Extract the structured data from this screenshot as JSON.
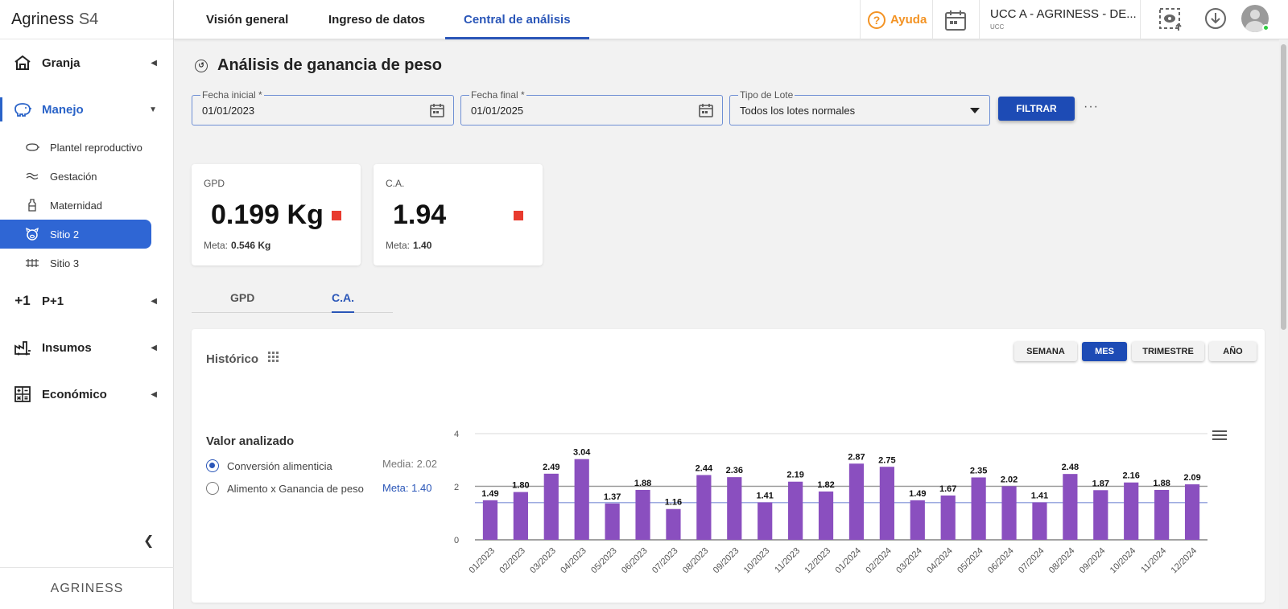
{
  "brand": {
    "name": "Agriness",
    "product": "S4"
  },
  "sidebar": {
    "groups": [
      {
        "label": "Granja",
        "icon": "barn-icon"
      },
      {
        "label": "Manejo",
        "icon": "pig-icon"
      },
      {
        "label": "P+1",
        "icon": "plus-one-icon"
      },
      {
        "label": "Insumos",
        "icon": "factory-icon"
      },
      {
        "label": "Económico",
        "icon": "calculator-icon"
      }
    ],
    "subitems": [
      {
        "label": "Plantel reproductivo",
        "icon": "pig-outline-icon"
      },
      {
        "label": "Gestación",
        "icon": "gestation-icon"
      },
      {
        "label": "Maternidad",
        "icon": "bottle-icon"
      },
      {
        "label": "Sitio 2",
        "icon": "piglet-icon"
      },
      {
        "label": "Sitio 3",
        "icon": "pen-icon"
      }
    ],
    "footer": "AGRINESS"
  },
  "topbar": {
    "tabs": [
      "Visión general",
      "Ingreso de datos",
      "Central de análisis"
    ],
    "help": "Ayuda",
    "farm_name": "UCC A - AGRINESS - DE...",
    "farm_sub": "UCC"
  },
  "page": {
    "title": "Análisis de ganancia de peso"
  },
  "filters": {
    "start_label": "Fecha inicial *",
    "start_value": "01/01/2023",
    "end_label": "Fecha final *",
    "end_value": "01/01/2025",
    "lot_label": "Tipo de Lote",
    "lot_value": "Todos los lotes normales",
    "filter_button": "FILTRAR",
    "more": "···"
  },
  "kpis": {
    "gpd": {
      "label": "GPD",
      "value": "0.199 Kg",
      "meta_label": "Meta:",
      "meta_value": "0.546 Kg",
      "status_color": "#e83a2e"
    },
    "ca": {
      "label": "C.A.",
      "value": "1.94",
      "meta_label": "Meta:",
      "meta_value": "1.40",
      "status_color": "#e83a2e"
    }
  },
  "kpi_tabs": [
    "GPD",
    "C.A."
  ],
  "history": {
    "title": "Histórico",
    "periods": [
      "SEMANA",
      "MES",
      "TRIMESTRE",
      "AÑO"
    ],
    "selected_period": "MES",
    "analyzed_title": "Valor analizado",
    "options": [
      "Conversión alimenticia",
      "Alimento x Ganancia de peso"
    ],
    "media": "Media: 2.02",
    "meta": "Meta: 1.40"
  },
  "chart_data": {
    "type": "bar",
    "categories": [
      "01/2023",
      "02/2023",
      "03/2023",
      "04/2023",
      "05/2023",
      "06/2023",
      "07/2023",
      "08/2023",
      "09/2023",
      "10/2023",
      "11/2023",
      "12/2023",
      "01/2024",
      "02/2024",
      "03/2024",
      "04/2024",
      "05/2024",
      "06/2024",
      "07/2024",
      "08/2024",
      "09/2024",
      "10/2024",
      "11/2024",
      "12/2024"
    ],
    "values": [
      1.49,
      1.8,
      2.49,
      3.04,
      1.37,
      1.88,
      1.16,
      2.44,
      2.36,
      1.41,
      2.19,
      1.82,
      2.87,
      2.75,
      1.49,
      1.67,
      2.35,
      2.02,
      1.41,
      2.48,
      1.87,
      2.16,
      1.88,
      2.09
    ],
    "yticks": [
      0,
      2,
      4
    ],
    "ylim": [
      0,
      4
    ],
    "reference_lines": {
      "media": 2.02,
      "meta": 1.4
    },
    "bar_color": "#8a4fbf",
    "meta_line_color": "#7d8fd6",
    "media_line_color": "#999999",
    "grid": true
  }
}
